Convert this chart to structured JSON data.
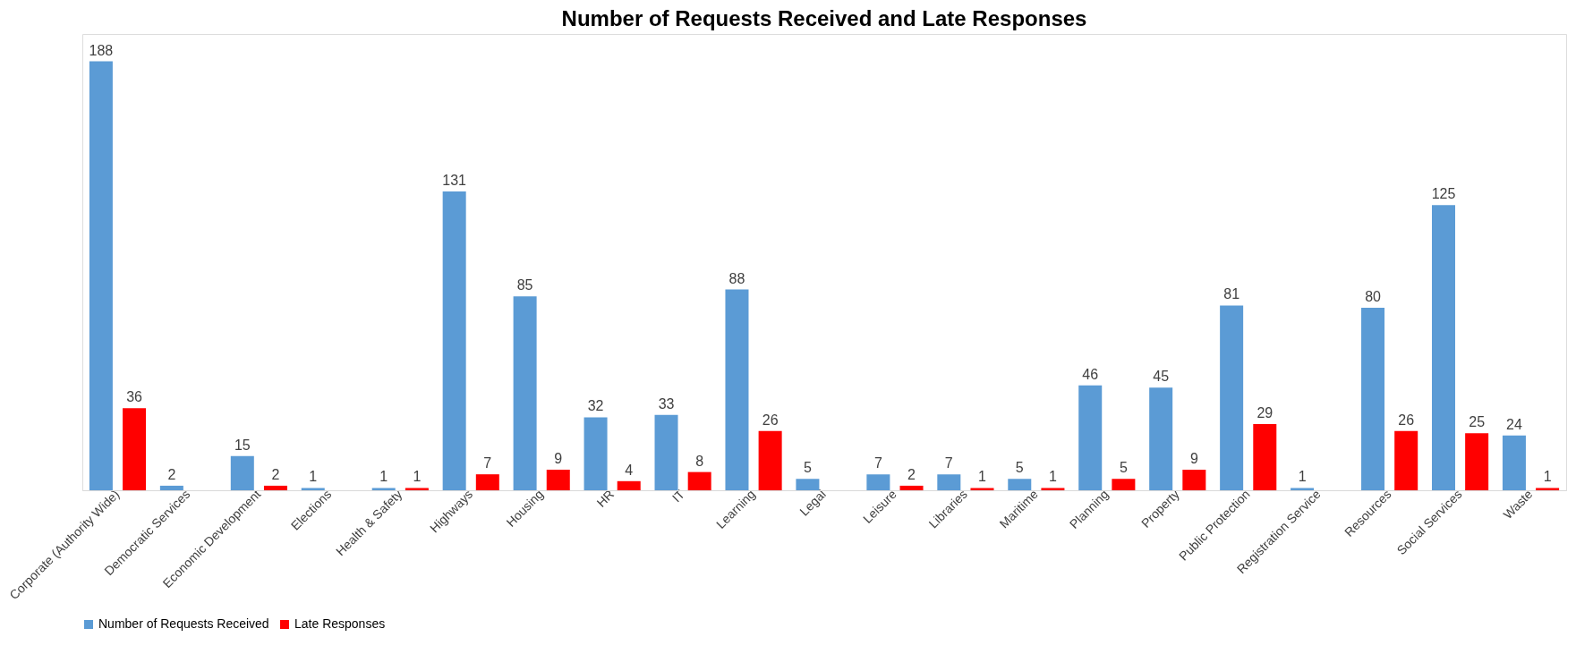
{
  "chart_data": {
    "type": "bar",
    "title": "Number of Requests Received and Late Responses",
    "categories": [
      "Corporate (Authority Wide)",
      "Democratic Services",
      "Economic Development",
      "Elections",
      "Health & Safety",
      "Highways",
      "Housing",
      "HR",
      "IT",
      "Learning",
      "Legal",
      "Leisure",
      "Libraries",
      "Maritime",
      "Planning",
      "Property",
      "Public Protection",
      "Registration Service",
      "Resources",
      "Social Services",
      "Waste"
    ],
    "series": [
      {
        "name": "Number of Requests Received",
        "color": "#5b9bd5",
        "values": [
          188,
          2,
          15,
          1,
          1,
          131,
          85,
          32,
          33,
          88,
          5,
          7,
          7,
          5,
          46,
          45,
          81,
          1,
          80,
          125,
          24
        ]
      },
      {
        "name": "Late Responses",
        "color": "#ff0000",
        "values": [
          36,
          null,
          2,
          null,
          1,
          7,
          9,
          4,
          8,
          26,
          null,
          2,
          1,
          1,
          5,
          9,
          29,
          null,
          26,
          25,
          1
        ]
      }
    ],
    "data_labels": true,
    "grid": false,
    "legend": "bottom"
  }
}
